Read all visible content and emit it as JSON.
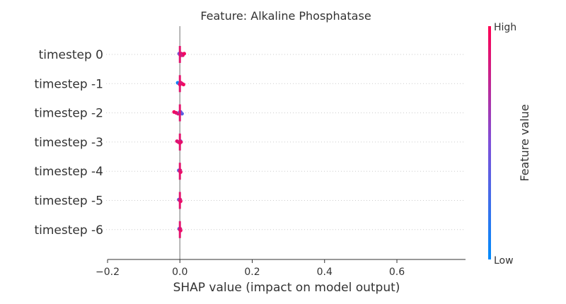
{
  "chart_data": {
    "type": "scatter",
    "subtype": "shap-beeswarm",
    "title": "Feature: Alkaline Phosphatase",
    "xlabel": "SHAP value (impact on model output)",
    "xlim": [
      -0.2,
      0.78
    ],
    "xticks": [
      -0.2,
      0.0,
      0.2,
      0.4,
      0.6
    ],
    "xtick_labels": [
      "−0.2",
      "0.0",
      "0.2",
      "0.4",
      "0.6"
    ],
    "categories": [
      "timestep 0",
      "timestep -1",
      "timestep -2",
      "timestep -3",
      "timestep -4",
      "timestep -5",
      "timestep -6"
    ],
    "series": [
      {
        "category": "timestep 0",
        "points": [
          {
            "x": -0.002,
            "v": 0.4
          },
          {
            "x": 0.0,
            "v": 0.95
          },
          {
            "x": 0.002,
            "v": 0.9
          },
          {
            "x": 0.004,
            "v": 0.85
          },
          {
            "x": 0.006,
            "v": 0.95
          },
          {
            "x": 0.008,
            "v": 0.9
          },
          {
            "x": 0.012,
            "v": 0.95
          },
          {
            "x": 0.0,
            "v": 0.5
          },
          {
            "x": 0.003,
            "v": 0.8
          }
        ]
      },
      {
        "category": "timestep -1",
        "points": [
          {
            "x": -0.006,
            "v": 0.05
          },
          {
            "x": -0.002,
            "v": 0.3
          },
          {
            "x": 0.0,
            "v": 0.9
          },
          {
            "x": 0.003,
            "v": 0.95
          },
          {
            "x": 0.006,
            "v": 0.9
          },
          {
            "x": 0.01,
            "v": 0.95
          },
          {
            "x": 0.002,
            "v": 0.85
          }
        ]
      },
      {
        "category": "timestep -2",
        "points": [
          {
            "x": -0.016,
            "v": 0.95
          },
          {
            "x": -0.01,
            "v": 0.9
          },
          {
            "x": -0.005,
            "v": 0.85
          },
          {
            "x": 0.0,
            "v": 0.4
          },
          {
            "x": 0.003,
            "v": 0.3
          },
          {
            "x": 0.006,
            "v": 0.35
          },
          {
            "x": 0.002,
            "v": 0.4
          }
        ]
      },
      {
        "category": "timestep -3",
        "points": [
          {
            "x": -0.008,
            "v": 0.9
          },
          {
            "x": -0.004,
            "v": 0.85
          },
          {
            "x": 0.0,
            "v": 0.95
          },
          {
            "x": 0.002,
            "v": 0.4
          },
          {
            "x": 0.003,
            "v": 0.9
          }
        ]
      },
      {
        "category": "timestep -4",
        "points": [
          {
            "x": -0.003,
            "v": 0.35
          },
          {
            "x": 0.0,
            "v": 0.9
          },
          {
            "x": 0.002,
            "v": 0.95
          },
          {
            "x": 0.001,
            "v": 0.85
          }
        ]
      },
      {
        "category": "timestep -5",
        "points": [
          {
            "x": -0.003,
            "v": 0.4
          },
          {
            "x": 0.0,
            "v": 0.9
          },
          {
            "x": 0.002,
            "v": 0.95
          },
          {
            "x": 0.001,
            "v": 0.85
          }
        ]
      },
      {
        "category": "timestep -6",
        "points": [
          {
            "x": -0.002,
            "v": 0.4
          },
          {
            "x": 0.0,
            "v": 0.9
          },
          {
            "x": 0.002,
            "v": 0.95
          },
          {
            "x": 0.001,
            "v": 0.85
          }
        ]
      }
    ],
    "colorbar": {
      "label": "Feature value",
      "high_label": "High",
      "low_label": "Low",
      "low_color": "#008bfb",
      "high_color": "#ff0052"
    },
    "zero_line_color": "#999999",
    "grid": "dotted-row-guides",
    "legend": "colorbar-right"
  }
}
